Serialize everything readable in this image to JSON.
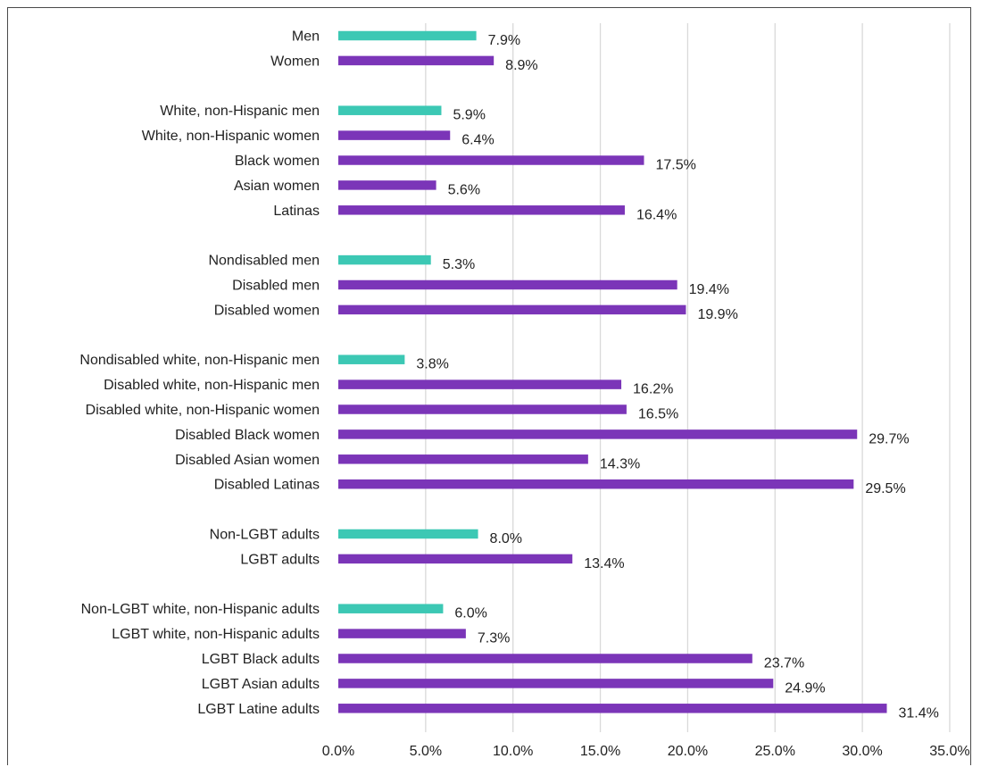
{
  "chart_data": {
    "type": "bar",
    "orientation": "horizontal",
    "xlim": [
      0,
      35
    ],
    "x_tick_values": [
      0,
      5,
      10,
      15,
      20,
      25,
      30,
      35
    ],
    "x_tick_labels": [
      "0.0%",
      "5.0%",
      "10.0%",
      "15.0%",
      "20.0%",
      "25.0%",
      "30.0%",
      "35.0%"
    ],
    "grid": "vertical",
    "colors": {
      "reference": "#3cc8b4",
      "comparison": "#7b35b8",
      "grid": "#d9d9d9",
      "axis_text": "#222222"
    },
    "groups": [
      {
        "bars": [
          {
            "category": "Men",
            "value": 7.9,
            "label": "7.9%",
            "kind": "reference"
          },
          {
            "category": "Women",
            "value": 8.9,
            "label": "8.9%",
            "kind": "comparison"
          }
        ]
      },
      {
        "bars": [
          {
            "category": "White, non-Hispanic men",
            "value": 5.9,
            "label": "5.9%",
            "kind": "reference"
          },
          {
            "category": "White, non-Hispanic women",
            "value": 6.4,
            "label": "6.4%",
            "kind": "comparison"
          },
          {
            "category": "Black women",
            "value": 17.5,
            "label": "17.5%",
            "kind": "comparison"
          },
          {
            "category": "Asian women",
            "value": 5.6,
            "label": "5.6%",
            "kind": "comparison"
          },
          {
            "category": "Latinas",
            "value": 16.4,
            "label": "16.4%",
            "kind": "comparison"
          }
        ]
      },
      {
        "bars": [
          {
            "category": "Nondisabled men",
            "value": 5.3,
            "label": "5.3%",
            "kind": "reference"
          },
          {
            "category": "Disabled men",
            "value": 19.4,
            "label": "19.4%",
            "kind": "comparison"
          },
          {
            "category": "Disabled women",
            "value": 19.9,
            "label": "19.9%",
            "kind": "comparison"
          }
        ]
      },
      {
        "bars": [
          {
            "category": "Nondisabled white, non-Hispanic men",
            "value": 3.8,
            "label": "3.8%",
            "kind": "reference"
          },
          {
            "category": "Disabled white, non-Hispanic men",
            "value": 16.2,
            "label": "16.2%",
            "kind": "comparison"
          },
          {
            "category": "Disabled white, non-Hispanic women",
            "value": 16.5,
            "label": "16.5%",
            "kind": "comparison"
          },
          {
            "category": "Disabled Black women",
            "value": 29.7,
            "label": "29.7%",
            "kind": "comparison"
          },
          {
            "category": "Disabled Asian women",
            "value": 14.3,
            "label": "14.3%",
            "kind": "comparison"
          },
          {
            "category": "Disabled Latinas",
            "value": 29.5,
            "label": "29.5%",
            "kind": "comparison"
          }
        ]
      },
      {
        "bars": [
          {
            "category": "Non-LGBT adults",
            "value": 8.0,
            "label": "8.0%",
            "kind": "reference"
          },
          {
            "category": "LGBT adults",
            "value": 13.4,
            "label": "13.4%",
            "kind": "comparison"
          }
        ]
      },
      {
        "bars": [
          {
            "category": "Non-LGBT white, non-Hispanic adults",
            "value": 6.0,
            "label": "6.0%",
            "kind": "reference"
          },
          {
            "category": "LGBT white, non-Hispanic adults",
            "value": 7.3,
            "label": "7.3%",
            "kind": "comparison"
          },
          {
            "category": "LGBT Black adults",
            "value": 23.7,
            "label": "23.7%",
            "kind": "comparison"
          },
          {
            "category": "LGBT Asian adults",
            "value": 24.9,
            "label": "24.9%",
            "kind": "comparison"
          },
          {
            "category": "LGBT Latine adults",
            "value": 31.4,
            "label": "31.4%",
            "kind": "comparison"
          }
        ]
      }
    ]
  }
}
